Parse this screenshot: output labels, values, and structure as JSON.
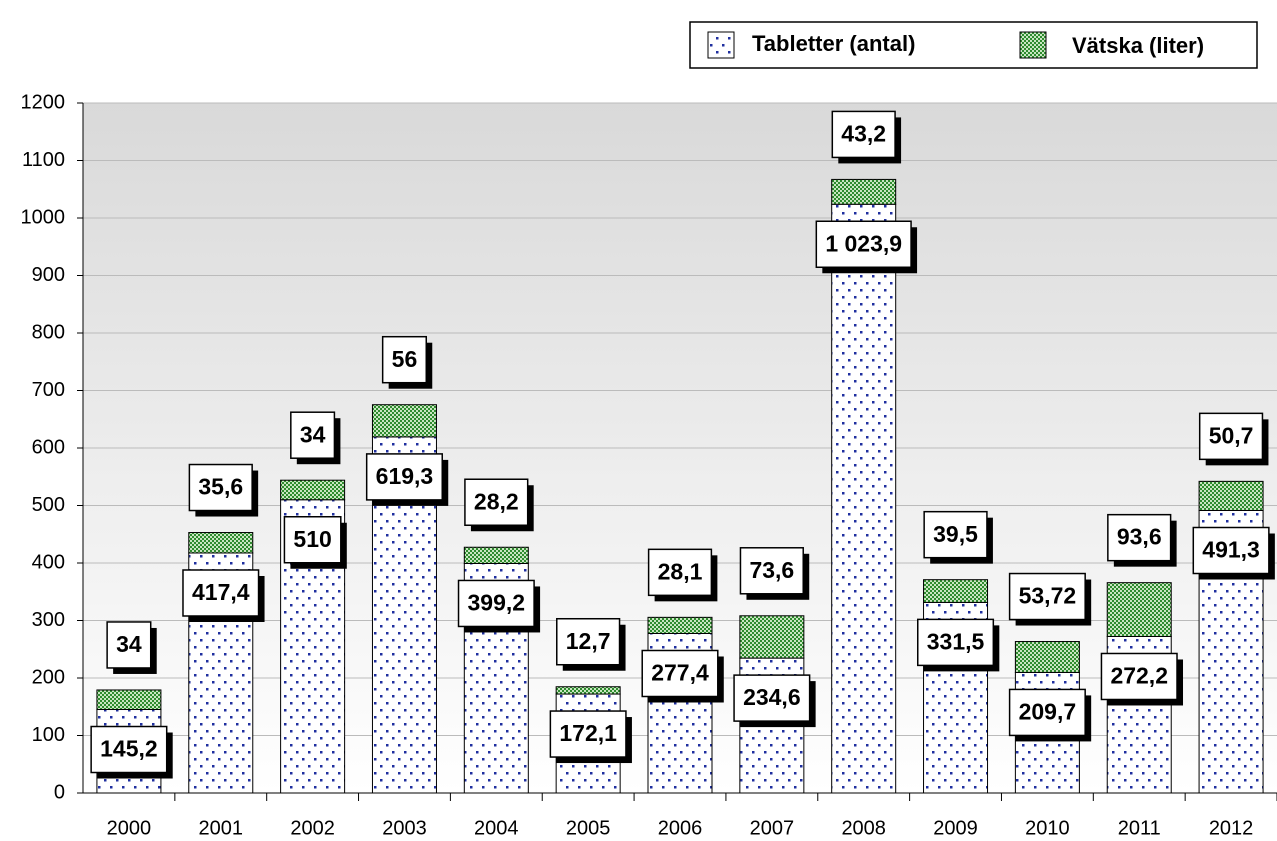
{
  "chart_data": {
    "type": "bar",
    "stacked": true,
    "categories": [
      "2000",
      "2001",
      "2002",
      "2003",
      "2004",
      "2005",
      "2006",
      "2007",
      "2008",
      "2009",
      "2010",
      "2011",
      "2012"
    ],
    "series": [
      {
        "name": "Tabletter (antal)",
        "color": "#1f2f9f",
        "values": [
          145.2,
          417.4,
          510,
          619.3,
          399.2,
          172.1,
          277.4,
          234.6,
          1023.9,
          331.5,
          209.7,
          272.2,
          491.3
        ],
        "value_labels": [
          "145,2",
          "417,4",
          "510",
          "619,3",
          "399,2",
          "172,1",
          "277,4",
          "234,6",
          "1 023,9",
          "331,5",
          "209,7",
          "272,2",
          "491,3"
        ]
      },
      {
        "name": "Vätska (liter)",
        "color": "#2e8b2e",
        "values": [
          34,
          35.6,
          34,
          56,
          28.2,
          12.7,
          28.1,
          73.6,
          43.2,
          39.5,
          53.72,
          93.6,
          50.7
        ],
        "value_labels": [
          "34",
          "35,6",
          "34",
          "56",
          "28,2",
          "12,7",
          "28,1",
          "73,6",
          "43,2",
          "39,5",
          "53,72",
          "93,6",
          "50,7"
        ]
      }
    ],
    "ylim": [
      0,
      1200
    ],
    "yticks": [
      0,
      100,
      200,
      300,
      400,
      500,
      600,
      700,
      800,
      900,
      1000,
      1100,
      1200
    ],
    "grid": true,
    "legend": "top-right"
  }
}
